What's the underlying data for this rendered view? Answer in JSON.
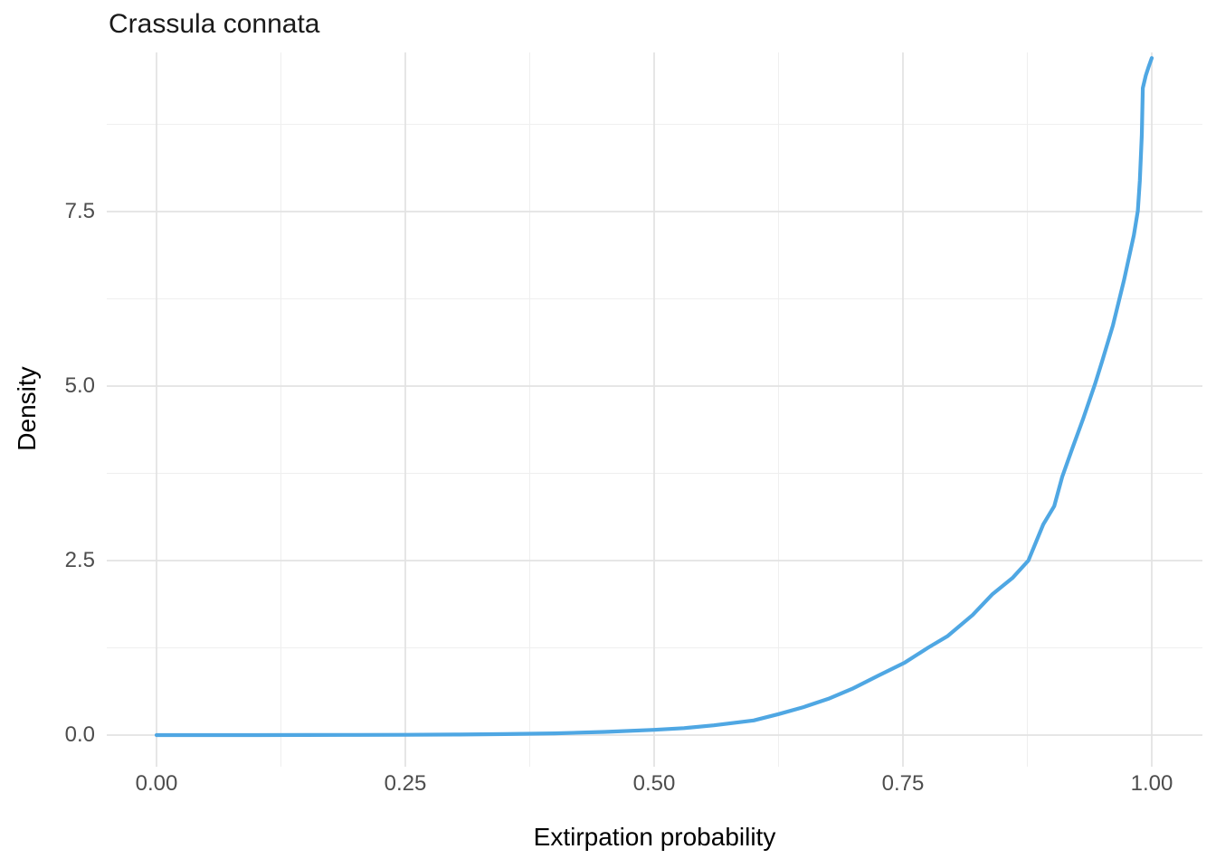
{
  "chart_data": {
    "type": "line",
    "title": "Crassula connata",
    "xlabel": "Extirpation probability",
    "ylabel": "Density",
    "xlim": [
      0,
      1
    ],
    "ylim": [
      0,
      9.8
    ],
    "grid": true,
    "legend": "none",
    "x_ticks": {
      "values": [
        0,
        0.25,
        0.5,
        0.75,
        1
      ],
      "labels": [
        "0.00",
        "0.25",
        "0.50",
        "0.75",
        "1.00"
      ]
    },
    "y_ticks": {
      "values": [
        0,
        2.5,
        5,
        7.5
      ],
      "labels": [
        "0.0",
        "2.5",
        "5.0",
        "7.5"
      ]
    },
    "x_minor": [
      0.125,
      0.375,
      0.625,
      0.875
    ],
    "y_minor": [
      1.25,
      3.75,
      6.25,
      8.75
    ],
    "series": [
      {
        "name": "extirpation-probability-density",
        "color": "#4FA7E3",
        "points": [
          [
            0.0,
            0.0
          ],
          [
            0.05,
            0.0
          ],
          [
            0.1,
            0.0
          ],
          [
            0.15,
            0.001
          ],
          [
            0.2,
            0.002
          ],
          [
            0.25,
            0.004
          ],
          [
            0.3,
            0.008
          ],
          [
            0.35,
            0.014
          ],
          [
            0.4,
            0.025
          ],
          [
            0.45,
            0.045
          ],
          [
            0.5,
            0.075
          ],
          [
            0.53,
            0.1
          ],
          [
            0.56,
            0.14
          ],
          [
            0.6,
            0.21
          ],
          [
            0.625,
            0.3
          ],
          [
            0.65,
            0.4
          ],
          [
            0.675,
            0.52
          ],
          [
            0.7,
            0.67
          ],
          [
            0.725,
            0.85
          ],
          [
            0.752,
            1.04
          ],
          [
            0.775,
            1.25
          ],
          [
            0.795,
            1.42
          ],
          [
            0.82,
            1.72
          ],
          [
            0.84,
            2.02
          ],
          [
            0.86,
            2.25
          ],
          [
            0.876,
            2.5
          ],
          [
            0.891,
            3.02
          ],
          [
            0.902,
            3.28
          ],
          [
            0.91,
            3.7
          ],
          [
            0.92,
            4.1
          ],
          [
            0.931,
            4.53
          ],
          [
            0.943,
            5.03
          ],
          [
            0.95,
            5.35
          ],
          [
            0.961,
            5.87
          ],
          [
            0.972,
            6.51
          ],
          [
            0.982,
            7.16
          ],
          [
            0.986,
            7.51
          ],
          [
            0.988,
            7.94
          ],
          [
            0.99,
            8.6
          ],
          [
            0.991,
            9.27
          ],
          [
            0.994,
            9.45
          ],
          [
            0.997,
            9.58
          ],
          [
            1.0,
            9.7
          ]
        ]
      }
    ]
  },
  "colors": {
    "line": "#4FA7E3",
    "grid_major": "#e3e3e3",
    "grid_minor": "#efefef",
    "tick_label": "#4d4d4d",
    "title_text": "#1a1a1a",
    "background": "#ffffff"
  }
}
